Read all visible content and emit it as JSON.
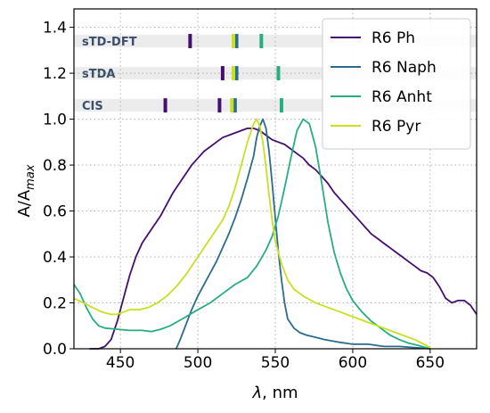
{
  "chart_data": {
    "type": "line",
    "xlabel_symbol": "λ",
    "xlabel_unit": ", nm",
    "ylabel_main": "A/A",
    "ylabel_sub": "max",
    "xlim": [
      420,
      680
    ],
    "ylim": [
      0,
      1.48
    ],
    "xticks": [
      450,
      500,
      550,
      600,
      650
    ],
    "yticks": [
      0.0,
      0.2,
      0.4,
      0.6,
      0.8,
      1.0,
      1.2,
      1.4
    ],
    "ytick_labels": [
      "0.0",
      "0.2",
      "0.4",
      "0.6",
      "0.8",
      "1.0",
      "1.2",
      "1.4"
    ],
    "grid": true,
    "legend_position": "top-right",
    "series": [
      {
        "name": "R6 Ph",
        "color": "#440f6e",
        "points": [
          [
            430,
            0
          ],
          [
            436,
            0
          ],
          [
            440,
            0.01
          ],
          [
            444,
            0.04
          ],
          [
            448,
            0.12
          ],
          [
            452,
            0.22
          ],
          [
            456,
            0.32
          ],
          [
            460,
            0.4
          ],
          [
            464,
            0.46
          ],
          [
            468,
            0.5
          ],
          [
            472,
            0.54
          ],
          [
            476,
            0.58
          ],
          [
            480,
            0.63
          ],
          [
            484,
            0.68
          ],
          [
            488,
            0.72
          ],
          [
            492,
            0.76
          ],
          [
            496,
            0.8
          ],
          [
            500,
            0.83
          ],
          [
            504,
            0.86
          ],
          [
            508,
            0.88
          ],
          [
            512,
            0.9
          ],
          [
            516,
            0.92
          ],
          [
            520,
            0.93
          ],
          [
            524,
            0.94
          ],
          [
            528,
            0.95
          ],
          [
            532,
            0.96
          ],
          [
            536,
            0.96
          ],
          [
            540,
            0.95
          ],
          [
            544,
            0.93
          ],
          [
            548,
            0.91
          ],
          [
            552,
            0.9
          ],
          [
            556,
            0.89
          ],
          [
            560,
            0.87
          ],
          [
            564,
            0.85
          ],
          [
            568,
            0.83
          ],
          [
            572,
            0.8
          ],
          [
            576,
            0.78
          ],
          [
            580,
            0.75
          ],
          [
            584,
            0.72
          ],
          [
            588,
            0.68
          ],
          [
            592,
            0.65
          ],
          [
            596,
            0.62
          ],
          [
            600,
            0.59
          ],
          [
            604,
            0.56
          ],
          [
            608,
            0.53
          ],
          [
            612,
            0.5
          ],
          [
            616,
            0.48
          ],
          [
            620,
            0.46
          ],
          [
            624,
            0.44
          ],
          [
            628,
            0.42
          ],
          [
            632,
            0.4
          ],
          [
            636,
            0.38
          ],
          [
            640,
            0.36
          ],
          [
            644,
            0.34
          ],
          [
            648,
            0.33
          ],
          [
            652,
            0.31
          ],
          [
            656,
            0.27
          ],
          [
            660,
            0.22
          ],
          [
            664,
            0.2
          ],
          [
            668,
            0.21
          ],
          [
            672,
            0.21
          ],
          [
            676,
            0.19
          ],
          [
            680,
            0.15
          ]
        ]
      },
      {
        "name": "R6 Naph",
        "color": "#2b6b8f",
        "points": [
          [
            486,
            0
          ],
          [
            488,
            0.03
          ],
          [
            492,
            0.1
          ],
          [
            496,
            0.17
          ],
          [
            500,
            0.23
          ],
          [
            504,
            0.28
          ],
          [
            508,
            0.33
          ],
          [
            512,
            0.38
          ],
          [
            516,
            0.44
          ],
          [
            520,
            0.5
          ],
          [
            524,
            0.57
          ],
          [
            528,
            0.65
          ],
          [
            532,
            0.74
          ],
          [
            536,
            0.84
          ],
          [
            538,
            0.92
          ],
          [
            540,
            0.97
          ],
          [
            542,
            1.0
          ],
          [
            544,
            0.96
          ],
          [
            546,
            0.86
          ],
          [
            548,
            0.72
          ],
          [
            550,
            0.57
          ],
          [
            552,
            0.42
          ],
          [
            554,
            0.3
          ],
          [
            556,
            0.2
          ],
          [
            558,
            0.13
          ],
          [
            562,
            0.09
          ],
          [
            566,
            0.07
          ],
          [
            570,
            0.06
          ],
          [
            576,
            0.05
          ],
          [
            582,
            0.04
          ],
          [
            590,
            0.03
          ],
          [
            600,
            0.02
          ],
          [
            610,
            0.02
          ],
          [
            620,
            0.01
          ],
          [
            630,
            0.01
          ],
          [
            640,
            0.005
          ],
          [
            650,
            0
          ]
        ]
      },
      {
        "name": "R6 Anht",
        "color": "#27ad81",
        "points": [
          [
            420,
            0.28
          ],
          [
            424,
            0.24
          ],
          [
            428,
            0.18
          ],
          [
            432,
            0.13
          ],
          [
            436,
            0.1
          ],
          [
            440,
            0.09
          ],
          [
            448,
            0.085
          ],
          [
            456,
            0.08
          ],
          [
            464,
            0.08
          ],
          [
            470,
            0.075
          ],
          [
            476,
            0.085
          ],
          [
            482,
            0.1
          ],
          [
            490,
            0.13
          ],
          [
            500,
            0.17
          ],
          [
            508,
            0.2
          ],
          [
            516,
            0.24
          ],
          [
            524,
            0.28
          ],
          [
            532,
            0.31
          ],
          [
            538,
            0.36
          ],
          [
            544,
            0.43
          ],
          [
            548,
            0.49
          ],
          [
            552,
            0.58
          ],
          [
            556,
            0.7
          ],
          [
            560,
            0.83
          ],
          [
            564,
            0.95
          ],
          [
            568,
            1.0
          ],
          [
            572,
            0.98
          ],
          [
            576,
            0.88
          ],
          [
            580,
            0.72
          ],
          [
            584,
            0.55
          ],
          [
            588,
            0.42
          ],
          [
            592,
            0.33
          ],
          [
            596,
            0.26
          ],
          [
            600,
            0.21
          ],
          [
            606,
            0.16
          ],
          [
            612,
            0.12
          ],
          [
            618,
            0.09
          ],
          [
            624,
            0.06
          ],
          [
            630,
            0.04
          ],
          [
            636,
            0.025
          ],
          [
            642,
            0.015
          ],
          [
            650,
            0
          ]
        ]
      },
      {
        "name": "R6 Pyr",
        "color": "#c8e020",
        "points": [
          [
            420,
            0.22
          ],
          [
            426,
            0.2
          ],
          [
            432,
            0.18
          ],
          [
            438,
            0.16
          ],
          [
            444,
            0.15
          ],
          [
            448,
            0.15
          ],
          [
            452,
            0.16
          ],
          [
            456,
            0.17
          ],
          [
            462,
            0.17
          ],
          [
            468,
            0.18
          ],
          [
            474,
            0.2
          ],
          [
            480,
            0.23
          ],
          [
            486,
            0.27
          ],
          [
            492,
            0.32
          ],
          [
            498,
            0.38
          ],
          [
            504,
            0.44
          ],
          [
            510,
            0.5
          ],
          [
            516,
            0.56
          ],
          [
            520,
            0.62
          ],
          [
            524,
            0.7
          ],
          [
            528,
            0.8
          ],
          [
            532,
            0.9
          ],
          [
            536,
            0.98
          ],
          [
            538,
            1.0
          ],
          [
            540,
            0.97
          ],
          [
            542,
            0.9
          ],
          [
            544,
            0.79
          ],
          [
            546,
            0.67
          ],
          [
            548,
            0.56
          ],
          [
            550,
            0.47
          ],
          [
            554,
            0.37
          ],
          [
            558,
            0.3
          ],
          [
            562,
            0.26
          ],
          [
            568,
            0.23
          ],
          [
            576,
            0.2
          ],
          [
            584,
            0.18
          ],
          [
            592,
            0.16
          ],
          [
            600,
            0.14
          ],
          [
            608,
            0.12
          ],
          [
            616,
            0.1
          ],
          [
            624,
            0.08
          ],
          [
            632,
            0.06
          ],
          [
            640,
            0.04
          ],
          [
            646,
            0.02
          ],
          [
            650,
            0.005
          ]
        ]
      }
    ],
    "method_bands": [
      {
        "label": "sTD-DFT",
        "y": 1.34
      },
      {
        "label": "sTDA",
        "y": 1.2
      },
      {
        "label": "CIS",
        "y": 1.06
      }
    ],
    "method_markers": [
      {
        "band": 0,
        "x": 495,
        "color": "#440f6e"
      },
      {
        "band": 0,
        "x": 525,
        "color": "#2b6b8f"
      },
      {
        "band": 0,
        "x": 541,
        "color": "#27ad81"
      },
      {
        "band": 0,
        "x": 523,
        "color": "#c8e020"
      },
      {
        "band": 1,
        "x": 516,
        "color": "#440f6e"
      },
      {
        "band": 1,
        "x": 525,
        "color": "#2b6b8f"
      },
      {
        "band": 1,
        "x": 552,
        "color": "#27ad81"
      },
      {
        "band": 1,
        "x": 523,
        "color": "#c8e020"
      },
      {
        "band": 2,
        "x": 479,
        "color": "#440f6e"
      },
      {
        "band": 2,
        "x": 514,
        "color": "#440f6e"
      },
      {
        "band": 2,
        "x": 524,
        "color": "#2b6b8f"
      },
      {
        "band": 2,
        "x": 554,
        "color": "#27ad81"
      },
      {
        "band": 2,
        "x": 522,
        "color": "#c8e020"
      }
    ]
  }
}
